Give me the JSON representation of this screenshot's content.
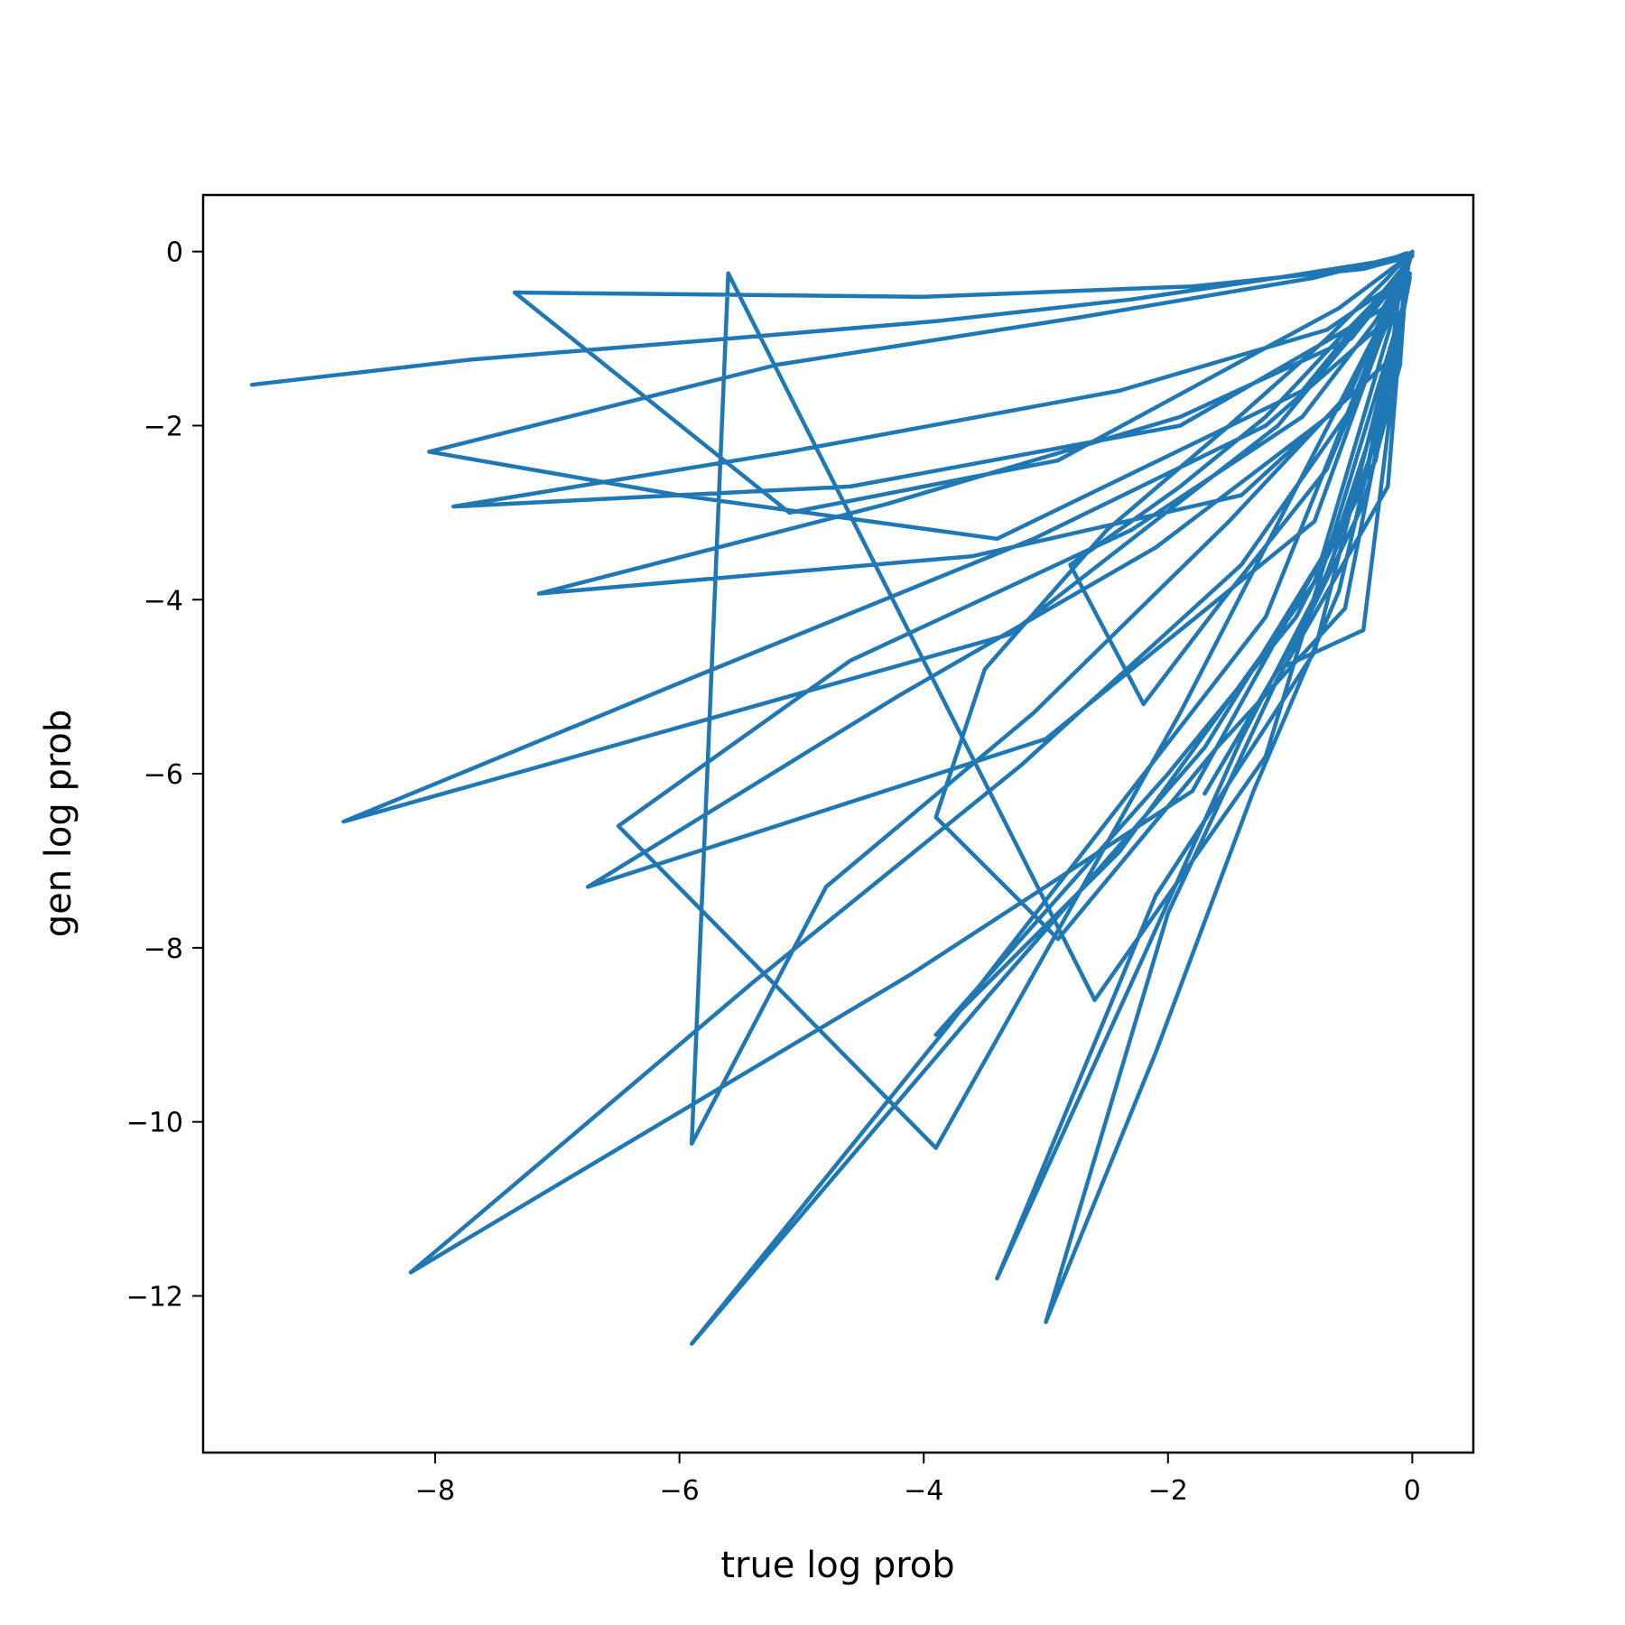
{
  "chart_data": {
    "type": "line",
    "title": "",
    "xlabel": "true log prob",
    "ylabel": "gen log prob",
    "xlim": [
      -9.9,
      0.5
    ],
    "ylim": [
      -13.8,
      0.65
    ],
    "xticks": [
      -8,
      -6,
      -4,
      -2,
      0
    ],
    "yticks": [
      0,
      -2,
      -4,
      -6,
      -8,
      -10,
      -12
    ],
    "xtick_labels": [
      "−8",
      "−6",
      "−4",
      "−2",
      "0"
    ],
    "ytick_labels": [
      "0",
      "−2",
      "−4",
      "−6",
      "−8",
      "−10",
      "−12"
    ],
    "grid": false,
    "legend": "none",
    "series_color": "#1f77b4",
    "series": [
      {
        "x": [
          -9.5,
          -7.7,
          -5.6,
          -3.9,
          -2.3,
          -1.1,
          -0.2,
          -0.05,
          0.0,
          -0.6,
          -2.9,
          -5.1,
          -7.35,
          -4.0,
          -1.8,
          -0.4,
          0.0,
          -0.9,
          -3.4,
          -6.0,
          -8.05,
          -5.2,
          -2.7,
          -0.8,
          -0.1,
          -0.05,
          -1.9,
          -4.6,
          -7.85,
          -5.1,
          -2.4,
          -0.7,
          -0.02,
          -0.15,
          -1.4,
          -3.6,
          -7.15,
          -4.3,
          -1.9,
          -0.5,
          -0.1,
          -1.1,
          -3.3,
          -8.75,
          -5.9,
          -3.1,
          -1.2,
          -0.3,
          -0.05,
          -0.8,
          -3.0,
          -6.75,
          -4.2,
          -2.1,
          -0.6,
          -0.02,
          -0.3,
          -1.8,
          -4.1,
          -8.2,
          -5.4,
          -3.2,
          -1.4,
          -0.45,
          -0.2,
          -1.2,
          -3.8,
          -5.9,
          -3.5,
          -1.7,
          -0.6,
          -0.2,
          -0.1,
          -1.9,
          -3.9,
          -6.5,
          -4.6,
          -2.3,
          -0.9,
          -0.3,
          -0.02,
          -0.8,
          -2.4,
          -3.9,
          -2.0,
          -0.95,
          -0.4,
          -0.15,
          -0.8,
          -2.1,
          -3.4,
          -2.2,
          -1.4,
          -0.7,
          -0.25,
          -0.05,
          -1.2,
          -2.6,
          -5.6,
          -5.9,
          -4.8,
          -3.1,
          -1.5,
          -0.5,
          -0.05,
          -0.2,
          -1.1,
          -2.0,
          -3.0,
          -2.1,
          -1.3,
          -0.6,
          -0.1,
          -0.55,
          -1.6,
          -2.9,
          -3.9,
          -3.5,
          -2.5,
          -1.5,
          -0.7,
          -0.2,
          -0.02,
          -0.4,
          -1.1,
          -1.7,
          -1.35,
          -0.85,
          -0.4,
          -0.1,
          -0.05,
          -0.7,
          -1.55,
          -2.2,
          -2.8,
          -1.9,
          -1.2,
          -0.6,
          -0.15,
          0.0
        ],
        "y": [
          -1.53,
          -1.24,
          -1.0,
          -0.8,
          -0.55,
          -0.3,
          -0.1,
          -0.02,
          -0.02,
          -0.65,
          -2.4,
          -3.0,
          -0.47,
          -0.52,
          -0.4,
          -0.2,
          -0.05,
          -1.6,
          -3.3,
          -2.8,
          -2.3,
          -1.3,
          -0.75,
          -0.3,
          -0.05,
          -0.5,
          -2.0,
          -2.7,
          -2.93,
          -2.3,
          -1.6,
          -0.9,
          -0.25,
          -1.2,
          -2.8,
          -3.5,
          -3.93,
          -2.9,
          -1.9,
          -1.0,
          -0.3,
          -2.0,
          -4.4,
          -6.55,
          -4.9,
          -3.3,
          -2.0,
          -0.9,
          -0.2,
          -3.1,
          -5.6,
          -7.3,
          -5.1,
          -3.4,
          -1.8,
          -0.3,
          -2.4,
          -6.2,
          -8.3,
          -11.73,
          -8.4,
          -5.9,
          -3.6,
          -1.7,
          -0.7,
          -4.2,
          -8.9,
          -12.55,
          -8.6,
          -5.7,
          -3.2,
          -1.5,
          -0.4,
          -5.3,
          -10.3,
          -6.6,
          -4.7,
          -3.2,
          -1.9,
          -0.8,
          -0.1,
          -3.8,
          -6.9,
          -9.0,
          -6.0,
          -4.2,
          -2.7,
          -1.0,
          -4.6,
          -7.4,
          -11.8,
          -8.1,
          -5.6,
          -3.7,
          -2.0,
          -0.5,
          -5.8,
          -8.6,
          -0.25,
          -10.25,
          -7.3,
          -5.3,
          -3.1,
          -1.6,
          -0.1,
          -2.7,
          -4.9,
          -7.6,
          -12.3,
          -9.2,
          -6.2,
          -3.9,
          -0.9,
          -4.1,
          -5.7,
          -7.9,
          -6.5,
          -4.8,
          -3.2,
          -2.0,
          -1.0,
          -0.3,
          -0.02,
          -4.35,
          -4.8,
          -6.23,
          -5.4,
          -4.2,
          -2.9,
          -1.3,
          -0.3,
          -2.5,
          -4.0,
          -5.2,
          -3.6,
          -2.7,
          -1.9,
          -1.0,
          -0.35,
          0.0
        ]
      }
    ]
  }
}
